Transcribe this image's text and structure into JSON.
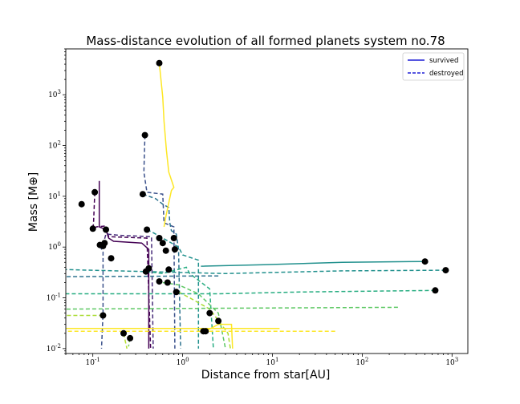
{
  "chart_data": {
    "type": "line",
    "title": "Mass-distance evolution of all formed planets system no.78",
    "xlabel": "Distance from star[AU]",
    "ylabel": "Mass [M⊕]",
    "xscale": "log",
    "yscale": "log",
    "xlim": [
      0.05,
      1500
    ],
    "ylim": [
      0.008,
      8000
    ],
    "x_tick_labels": [
      "10^-1",
      "10^0",
      "10^1",
      "10^2",
      "10^3"
    ],
    "y_tick_labels": [
      "10^-2",
      "10^-1",
      "10^0",
      "10^1",
      "10^2",
      "10^3"
    ],
    "legend": {
      "position": "top-right",
      "entries": [
        {
          "label": "survived",
          "style": "solid",
          "color": "#1f1fd6"
        },
        {
          "label": "destroyed",
          "style": "dashed",
          "color": "#1f1fd6"
        }
      ]
    },
    "colormap": "viridis",
    "series": [
      {
        "color": "#440154",
        "style": "solid",
        "points": [
          [
            0.118,
            20
          ],
          [
            0.118,
            2.5
          ],
          [
            0.14,
            2.2
          ],
          [
            0.15,
            1.5
          ],
          [
            0.17,
            1.3
          ],
          [
            0.35,
            1.2
          ],
          [
            0.42,
            0.9
          ],
          [
            0.42,
            0.01
          ]
        ]
      },
      {
        "color": "#440154",
        "style": "dashed",
        "points": [
          [
            0.105,
            12
          ],
          [
            0.102,
            3
          ],
          [
            0.1,
            2.3
          ],
          [
            0.11,
            2.5
          ],
          [
            0.14,
            2.6
          ],
          [
            0.15,
            1.6
          ],
          [
            0.4,
            1.5
          ],
          [
            0.44,
            0.01
          ]
        ]
      },
      {
        "color": "#472c7a",
        "style": "dashed",
        "points": [
          [
            0.13,
            1.1
          ],
          [
            0.14,
            1.8
          ],
          [
            0.2,
            1.7
          ],
          [
            0.45,
            1.6
          ],
          [
            0.47,
            0.01
          ]
        ]
      },
      {
        "color": "#3b518b",
        "style": "dashed",
        "points": [
          [
            0.12,
            1.05
          ],
          [
            0.13,
            0.8
          ],
          [
            0.13,
            0.05
          ],
          [
            0.125,
            0.01
          ]
        ]
      },
      {
        "color": "#3b518b",
        "style": "dashed",
        "points": [
          [
            0.38,
            160
          ],
          [
            0.37,
            30
          ],
          [
            0.4,
            12
          ],
          [
            0.6,
            11
          ],
          [
            0.62,
            3
          ],
          [
            0.8,
            2.5
          ],
          [
            0.82,
            0.01
          ]
        ]
      },
      {
        "color": "#2c728e",
        "style": "dashed",
        "points": [
          [
            0.36,
            11
          ],
          [
            0.5,
            9
          ],
          [
            0.6,
            7
          ],
          [
            0.7,
            6
          ],
          [
            0.72,
            3
          ],
          [
            0.75,
            2.1
          ],
          [
            0.85,
            1.8
          ],
          [
            0.9,
            0.9
          ],
          [
            0.95,
            0.01
          ]
        ]
      },
      {
        "color": "#fde725",
        "style": "solid",
        "points": [
          [
            0.55,
            4200
          ],
          [
            0.6,
            900
          ],
          [
            0.62,
            300
          ],
          [
            0.66,
            80
          ],
          [
            0.7,
            30
          ],
          [
            0.8,
            15
          ],
          [
            0.75,
            13
          ],
          [
            0.65,
            4
          ],
          [
            0.62,
            2.5
          ]
        ]
      },
      {
        "color": "#21908d",
        "style": "dashed",
        "points": [
          [
            0.4,
            2.2
          ],
          [
            0.45,
            2.0
          ],
          [
            0.6,
            1.5
          ],
          [
            0.9,
            1.0
          ],
          [
            1.0,
            0.7
          ],
          [
            1.5,
            0.55
          ],
          [
            1.5,
            0.01
          ]
        ]
      },
      {
        "color": "#27ad81",
        "style": "dashed",
        "points": [
          [
            0.39,
            0.33
          ],
          [
            0.6,
            0.3
          ],
          [
            1.1,
            0.4
          ],
          [
            1.2,
            0.3
          ],
          [
            2.0,
            0.15
          ],
          [
            2.2,
            0.01
          ]
        ]
      },
      {
        "color": "#5dc863",
        "style": "dashed",
        "points": [
          [
            0.6,
            0.2
          ],
          [
            0.9,
            0.18
          ],
          [
            1.5,
            0.12
          ],
          [
            2.5,
            0.05
          ],
          [
            3.0,
            0.01
          ]
        ]
      },
      {
        "color": "#aadc32",
        "style": "dashed",
        "points": [
          [
            0.9,
            0.13
          ],
          [
            1.2,
            0.1
          ],
          [
            2.0,
            0.06
          ],
          [
            3.2,
            0.02
          ],
          [
            3.4,
            0.01
          ]
        ]
      },
      {
        "color": "#fde725",
        "style": "solid",
        "points": [
          [
            1.8,
            0.022
          ],
          [
            2.5,
            0.03
          ],
          [
            3.5,
            0.03
          ],
          [
            3.6,
            0.01
          ]
        ]
      },
      {
        "color": "#21908d",
        "style": "solid",
        "points": [
          [
            500,
            0.52
          ],
          [
            60,
            0.5
          ],
          [
            8,
            0.45
          ],
          [
            1.6,
            0.42
          ]
        ]
      },
      {
        "color": "#21908d",
        "style": "dashed",
        "points": [
          [
            850,
            0.35
          ],
          [
            60,
            0.34
          ],
          [
            3,
            0.3
          ],
          [
            0.05,
            0.36
          ]
        ]
      },
      {
        "color": "#2c728e",
        "style": "dashed",
        "points": [
          [
            2.5,
            0.27
          ],
          [
            0.05,
            0.26
          ]
        ]
      },
      {
        "color": "#27ad81",
        "style": "dashed",
        "points": [
          [
            650,
            0.14
          ],
          [
            20,
            0.13
          ],
          [
            2.5,
            0.12
          ],
          [
            0.05,
            0.12
          ]
        ]
      },
      {
        "color": "#5dc863",
        "style": "dashed",
        "points": [
          [
            250,
            0.065
          ],
          [
            10,
            0.063
          ],
          [
            0.05,
            0.06
          ]
        ]
      },
      {
        "color": "#aadc32",
        "style": "dashed",
        "points": [
          [
            0.13,
            0.045
          ],
          [
            0.05,
            0.045
          ]
        ]
      },
      {
        "color": "#fde725",
        "style": "dashed",
        "points": [
          [
            50,
            0.022
          ],
          [
            5,
            0.022
          ],
          [
            0.05,
            0.022
          ]
        ]
      },
      {
        "color": "#fde725",
        "style": "solid",
        "points": [
          [
            12,
            0.025
          ],
          [
            0.05,
            0.025
          ]
        ]
      },
      {
        "color": "#b5de2b",
        "style": "dashed",
        "points": [
          [
            0.22,
            0.02
          ],
          [
            0.24,
            0.01
          ]
        ]
      },
      {
        "color": "#7ad151",
        "style": "dashed",
        "points": [
          [
            0.26,
            0.016
          ],
          [
            0.25,
            0.011
          ]
        ]
      }
    ],
    "endpoints": [
      [
        0.55,
        4200
      ],
      [
        0.38,
        160
      ],
      [
        0.105,
        12
      ],
      [
        0.075,
        7
      ],
      [
        0.36,
        11
      ],
      [
        0.1,
        2.3
      ],
      [
        0.14,
        2.2
      ],
      [
        0.4,
        2.2
      ],
      [
        0.12,
        1.1
      ],
      [
        0.13,
        1.05
      ],
      [
        0.135,
        1.2
      ],
      [
        0.16,
        0.6
      ],
      [
        0.55,
        1.5
      ],
      [
        0.6,
        1.2
      ],
      [
        0.8,
        1.5
      ],
      [
        0.82,
        0.9
      ],
      [
        0.65,
        0.85
      ],
      [
        0.42,
        0.38
      ],
      [
        0.39,
        0.33
      ],
      [
        0.7,
        0.36
      ],
      [
        0.55,
        0.21
      ],
      [
        0.68,
        0.2
      ],
      [
        0.85,
        0.13
      ],
      [
        0.13,
        0.045
      ],
      [
        1.8,
        0.022
      ],
      [
        2.0,
        0.05
      ],
      [
        1.7,
        0.022
      ],
      [
        2.5,
        0.035
      ],
      [
        0.22,
        0.02
      ],
      [
        0.26,
        0.016
      ],
      [
        500,
        0.52
      ],
      [
        850,
        0.35
      ],
      [
        650,
        0.14
      ]
    ]
  }
}
